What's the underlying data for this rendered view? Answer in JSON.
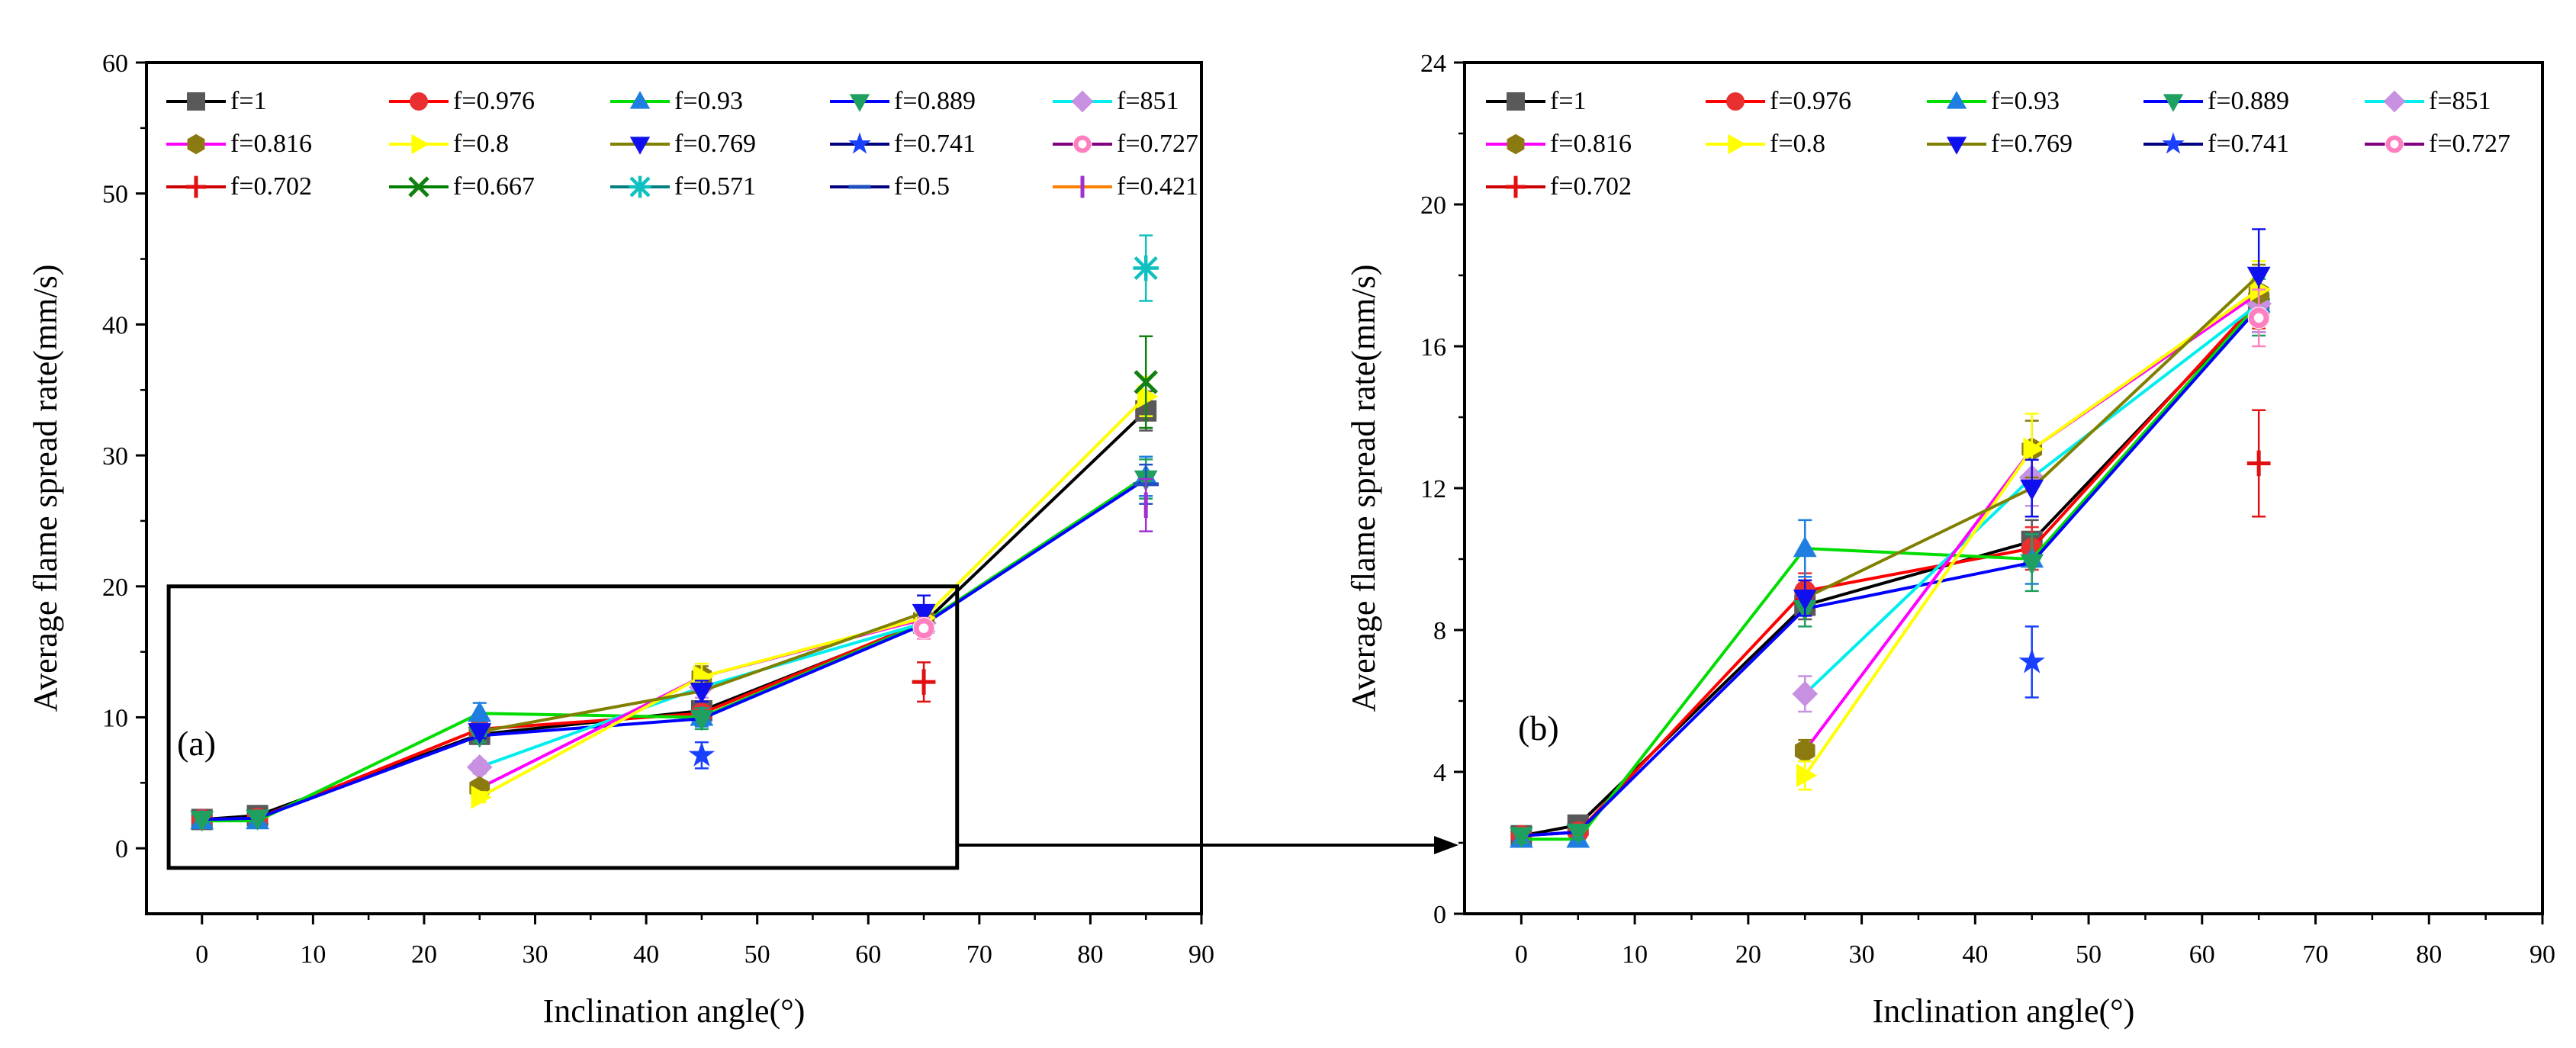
{
  "chart_data": [
    {
      "id": "a",
      "type": "line",
      "panel_label": "(a)",
      "xlabel": "Inclination angle(°)",
      "ylabel": "Average flame spread rate(mm/s)",
      "xlim": [
        -5,
        90
      ],
      "ylim": [
        -5,
        60
      ],
      "xticks": [
        0,
        10,
        20,
        30,
        40,
        50,
        60,
        70,
        80,
        90
      ],
      "yticks": [
        0,
        10,
        20,
        30,
        40,
        50,
        60
      ],
      "zoom_box": {
        "x": [
          -3,
          68
        ],
        "y": [
          -1.5,
          20
        ]
      },
      "series": [
        {
          "name": "f=1",
          "color": "#000000",
          "marker": "square",
          "marker_color": "#595959",
          "x": [
            0,
            5,
            25,
            45,
            65,
            85
          ],
          "y": [
            2.2,
            2.5,
            8.7,
            10.5,
            17.2,
            33.4
          ],
          "err": [
            0.2,
            0.2,
            0.4,
            0.6,
            0.8,
            1.5
          ]
        },
        {
          "name": "f=0.976",
          "color": "#ff0000",
          "marker": "circle",
          "marker_color": "#e83030",
          "x": [
            0,
            5,
            25,
            45,
            65
          ],
          "y": [
            2.2,
            2.3,
            9.1,
            10.3,
            17.3
          ],
          "err": [
            0.2,
            0.2,
            0.5,
            0.6,
            0.8
          ]
        },
        {
          "name": "f=0.93",
          "color": "#00dd00",
          "marker": "triangle-up",
          "marker_color": "#1e7fe0",
          "x": [
            0,
            5,
            25,
            45,
            65,
            85
          ],
          "y": [
            2.1,
            2.1,
            10.3,
            10.0,
            17.2,
            28.4
          ],
          "err": [
            0.2,
            0.2,
            0.8,
            0.7,
            0.8,
            1.5
          ]
        },
        {
          "name": "f=0.889",
          "color": "#0000ff",
          "marker": "triangle-down",
          "marker_color": "#20a060",
          "x": [
            0,
            5,
            25,
            45,
            65,
            85
          ],
          "y": [
            2.2,
            2.3,
            8.6,
            9.9,
            17.1,
            28.2
          ],
          "err": [
            0.2,
            0.2,
            0.5,
            0.8,
            0.8,
            1.5
          ]
        },
        {
          "name": "f=851",
          "color": "#00eeee",
          "marker": "diamond",
          "marker_color": "#c890e0",
          "x": [
            25,
            45,
            65
          ],
          "y": [
            6.2,
            12.3,
            17.2
          ],
          "err": [
            0.5,
            0.8,
            0.8
          ]
        },
        {
          "name": "f=0.816",
          "color": "#ff00ff",
          "marker": "hexagon",
          "marker_color": "#8a7a10",
          "x": [
            25,
            45,
            65
          ],
          "y": [
            4.6,
            13.1,
            17.5
          ],
          "err": [
            0.3,
            0.8,
            0.8
          ]
        },
        {
          "name": "f=0.8",
          "color": "#ffff00",
          "marker": "triangle-right",
          "marker_color": "#ffff00",
          "x": [
            25,
            45,
            65,
            85
          ],
          "y": [
            3.9,
            13.1,
            17.6,
            34.5
          ],
          "err": [
            0.4,
            1.0,
            0.8,
            1.5
          ]
        },
        {
          "name": "f=0.769",
          "color": "#808000",
          "marker": "triangle-down",
          "marker_color": "#1010ee",
          "x": [
            25,
            45,
            65
          ],
          "y": [
            8.9,
            12.0,
            18.0
          ],
          "err": [
            0.5,
            0.8,
            1.3
          ]
        },
        {
          "name": "f=0.741",
          "color": "#000080",
          "marker": "star",
          "marker_color": "#1a40ff",
          "x": [
            45
          ],
          "y": [
            7.1
          ],
          "err": [
            1.0
          ]
        },
        {
          "name": "f=0.727",
          "color": "#800080",
          "marker": "circle-open",
          "marker_color": "#ff80c0",
          "x": [
            65
          ],
          "y": [
            16.8
          ],
          "err": [
            0.8
          ]
        },
        {
          "name": "f=0.702",
          "color": "#cc0000",
          "marker": "plus",
          "marker_color": "#e01010",
          "x": [
            65
          ],
          "y": [
            12.7
          ],
          "err": [
            1.5
          ]
        },
        {
          "name": "f=0.667",
          "color": "#008000",
          "marker": "cross",
          "marker_color": "#108010",
          "x": [
            85
          ],
          "y": [
            35.6
          ],
          "err": [
            3.5
          ]
        },
        {
          "name": "f=0.571",
          "color": "#008080",
          "marker": "asterisk",
          "marker_color": "#10c0c0",
          "x": [
            85
          ],
          "y": [
            44.3
          ],
          "err": [
            2.5
          ]
        },
        {
          "name": "f=0.5",
          "color": "#000080",
          "marker": "hline",
          "marker_color": "#2050c0",
          "x": [
            85
          ],
          "y": [
            27.8
          ],
          "err": [
            1.5
          ]
        },
        {
          "name": "f=0.421",
          "color": "#ff8000",
          "marker": "vline",
          "marker_color": "#a030d0",
          "x": [
            85
          ],
          "y": [
            26.2
          ],
          "err": [
            2.0
          ]
        }
      ]
    },
    {
      "id": "b",
      "type": "line",
      "panel_label": "(b)",
      "xlabel": "Inclination angle(°)",
      "ylabel": "Average flame spread rate(mm/s)",
      "xlim": [
        -5,
        90
      ],
      "ylim": [
        0,
        24
      ],
      "xticks": [
        0,
        10,
        20,
        30,
        40,
        50,
        60,
        70,
        80,
        90
      ],
      "yticks": [
        0,
        4,
        8,
        12,
        16,
        20,
        24
      ],
      "series": [
        {
          "name": "f=1",
          "color": "#000000",
          "marker": "square",
          "marker_color": "#595959",
          "x": [
            0,
            5,
            25,
            45,
            65
          ],
          "y": [
            2.2,
            2.5,
            8.7,
            10.5,
            17.2
          ],
          "err": [
            0.2,
            0.2,
            0.4,
            0.6,
            0.8
          ]
        },
        {
          "name": "f=0.976",
          "color": "#ff0000",
          "marker": "circle",
          "marker_color": "#e83030",
          "x": [
            0,
            5,
            25,
            45,
            65
          ],
          "y": [
            2.2,
            2.3,
            9.1,
            10.3,
            17.3
          ],
          "err": [
            0.2,
            0.2,
            0.5,
            0.6,
            0.8
          ]
        },
        {
          "name": "f=0.93",
          "color": "#00dd00",
          "marker": "triangle-up",
          "marker_color": "#1e7fe0",
          "x": [
            0,
            5,
            25,
            45,
            65
          ],
          "y": [
            2.1,
            2.1,
            10.3,
            10.0,
            17.2
          ],
          "err": [
            0.2,
            0.2,
            0.8,
            0.7,
            0.8
          ]
        },
        {
          "name": "f=0.889",
          "color": "#0000ff",
          "marker": "triangle-down",
          "marker_color": "#20a060",
          "x": [
            0,
            5,
            25,
            45,
            65
          ],
          "y": [
            2.2,
            2.3,
            8.6,
            9.9,
            17.1
          ],
          "err": [
            0.2,
            0.2,
            0.5,
            0.8,
            0.8
          ]
        },
        {
          "name": "f=851",
          "color": "#00eeee",
          "marker": "diamond",
          "marker_color": "#c890e0",
          "x": [
            25,
            45,
            65
          ],
          "y": [
            6.2,
            12.3,
            17.2
          ],
          "err": [
            0.5,
            0.8,
            0.8
          ]
        },
        {
          "name": "f=0.816",
          "color": "#ff00ff",
          "marker": "hexagon",
          "marker_color": "#8a7a10",
          "x": [
            25,
            45,
            65
          ],
          "y": [
            4.6,
            13.1,
            17.5
          ],
          "err": [
            0.3,
            0.8,
            0.8
          ]
        },
        {
          "name": "f=0.8",
          "color": "#ffff00",
          "marker": "triangle-right",
          "marker_color": "#ffff00",
          "x": [
            25,
            45,
            65
          ],
          "y": [
            3.9,
            13.1,
            17.6
          ],
          "err": [
            0.4,
            1.0,
            0.8
          ]
        },
        {
          "name": "f=0.769",
          "color": "#808000",
          "marker": "triangle-down",
          "marker_color": "#1010ee",
          "x": [
            25,
            45,
            65
          ],
          "y": [
            8.9,
            12.0,
            18.0
          ],
          "err": [
            0.5,
            0.8,
            1.3
          ]
        },
        {
          "name": "f=0.741",
          "color": "#000080",
          "marker": "star",
          "marker_color": "#1a40ff",
          "x": [
            45
          ],
          "y": [
            7.1
          ],
          "err": [
            1.0
          ]
        },
        {
          "name": "f=0.727",
          "color": "#800080",
          "marker": "circle-open",
          "marker_color": "#ff80c0",
          "x": [
            65
          ],
          "y": [
            16.8
          ],
          "err": [
            0.8
          ]
        },
        {
          "name": "f=0.702",
          "color": "#cc0000",
          "marker": "plus",
          "marker_color": "#e01010",
          "x": [
            65
          ],
          "y": [
            12.7
          ],
          "err": [
            1.5
          ]
        }
      ]
    }
  ]
}
